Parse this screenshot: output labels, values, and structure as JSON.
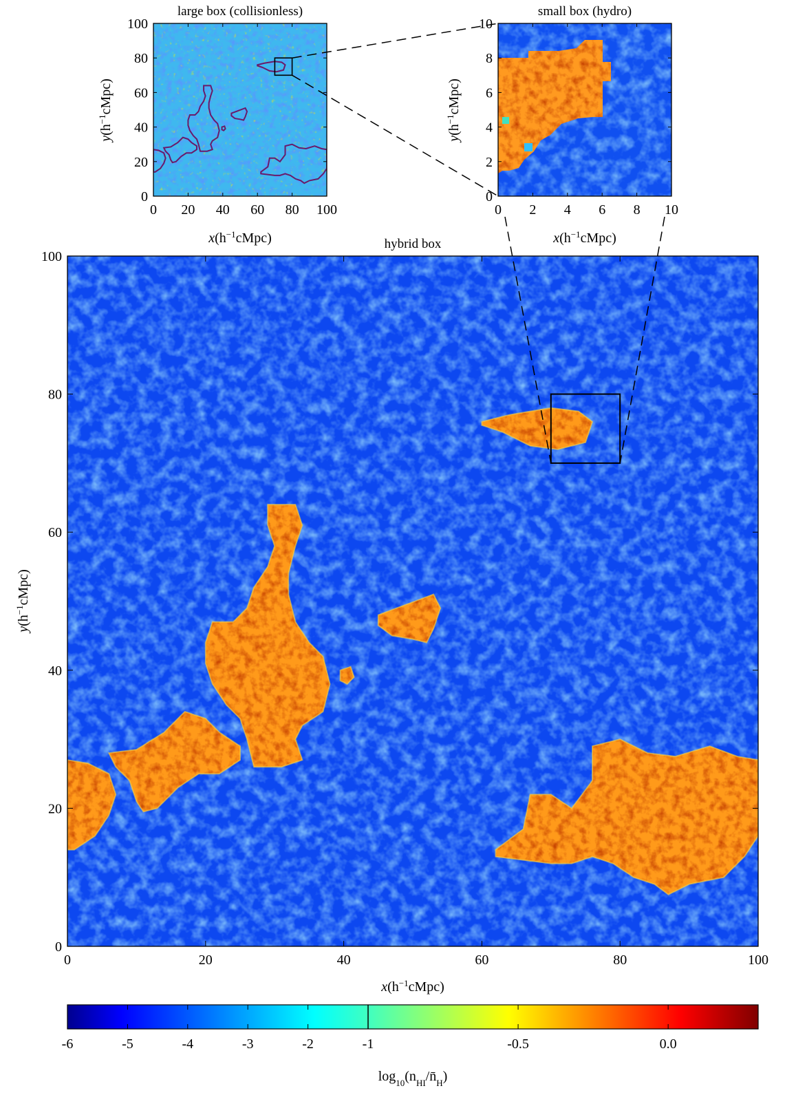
{
  "chart_data": [
    {
      "id": "large",
      "type": "heatmap",
      "title": "large box (collisionless)",
      "xlabel": "x",
      "xunit": "(h⁻¹cMpc)",
      "ylabel": "y",
      "yunit": "(h⁻¹cMpc)",
      "xlim": [
        0,
        100
      ],
      "ylim": [
        0,
        100
      ],
      "xticks": [
        0,
        20,
        40,
        60,
        80,
        100
      ],
      "yticks": [
        0,
        20,
        40,
        60,
        80,
        100
      ],
      "highlight_box": {
        "x": [
          70,
          80
        ],
        "y": [
          70,
          80
        ]
      }
    },
    {
      "id": "small",
      "type": "heatmap",
      "title": "small box (hydro)",
      "xlabel": "x",
      "xunit": "(h⁻¹cMpc)",
      "ylabel": "y",
      "yunit": "(h⁻¹cMpc)",
      "xlim": [
        0,
        10
      ],
      "ylim": [
        0,
        10
      ],
      "xticks": [
        0,
        2,
        4,
        6,
        8,
        10
      ],
      "yticks": [
        0,
        2,
        4,
        6,
        8,
        10
      ]
    },
    {
      "id": "hybrid",
      "type": "heatmap",
      "title": "hybrid box",
      "xlabel": "x",
      "xunit": "(h⁻¹cMpc)",
      "ylabel": "y",
      "yunit": "(h⁻¹cMpc)",
      "xlim": [
        0,
        100
      ],
      "ylim": [
        0,
        100
      ],
      "xticks": [
        0,
        20,
        40,
        60,
        80,
        100
      ],
      "yticks": [
        0,
        20,
        40,
        60,
        80,
        100
      ],
      "highlight_box": {
        "x": [
          70,
          80
        ],
        "y": [
          70,
          80
        ]
      },
      "neutral_regions": [
        {
          "name": "top-right island",
          "points": [
            [
              60,
              76
            ],
            [
              64,
              77
            ],
            [
              70,
              78
            ],
            [
              74,
              77.5
            ],
            [
              76,
              76
            ],
            [
              75,
              73
            ],
            [
              71,
              72
            ],
            [
              67,
              72.5
            ],
            [
              63,
              74.5
            ],
            [
              60,
              75.5
            ]
          ]
        },
        {
          "name": "central finger",
          "points": [
            [
              29,
              64
            ],
            [
              33,
              64
            ],
            [
              34,
              61
            ],
            [
              33,
              58
            ],
            [
              32,
              54
            ],
            [
              32,
              51
            ],
            [
              33,
              47
            ],
            [
              35,
              44
            ],
            [
              37,
              42
            ],
            [
              38,
              38
            ],
            [
              37,
              34
            ],
            [
              34,
              32
            ],
            [
              33,
              30
            ],
            [
              34,
              27
            ],
            [
              31,
              26
            ],
            [
              27,
              26
            ],
            [
              26,
              30
            ],
            [
              25,
              33
            ],
            [
              23,
              35
            ],
            [
              21,
              38
            ],
            [
              20,
              41
            ],
            [
              20,
              44
            ],
            [
              21,
              47
            ],
            [
              24,
              47
            ],
            [
              26,
              49
            ],
            [
              27,
              52
            ],
            [
              29,
              55
            ],
            [
              30,
              58
            ],
            [
              29,
              61
            ]
          ]
        },
        {
          "name": "middle island",
          "points": [
            [
              45,
              48
            ],
            [
              49,
              49.5
            ],
            [
              53,
              51
            ],
            [
              54,
              49
            ],
            [
              53,
              46
            ],
            [
              52,
              44
            ],
            [
              50,
              44.5
            ],
            [
              47,
              45
            ],
            [
              45,
              46.5
            ]
          ]
        },
        {
          "name": "small islet",
          "points": [
            [
              39.5,
              40
            ],
            [
              41,
              40.5
            ],
            [
              41.5,
              39
            ],
            [
              40.5,
              38
            ],
            [
              39.5,
              38.5
            ]
          ]
        },
        {
          "name": "left arm",
          "points": [
            [
              6,
              28
            ],
            [
              10,
              28.5
            ],
            [
              14,
              31
            ],
            [
              17,
              34
            ],
            [
              20,
              33
            ],
            [
              22,
              31
            ],
            [
              25,
              29
            ],
            [
              25,
              27
            ],
            [
              22,
              25
            ],
            [
              19,
              25
            ],
            [
              16,
              23
            ],
            [
              13,
              20
            ],
            [
              11,
              19.5
            ],
            [
              10,
              21
            ],
            [
              9,
              24
            ],
            [
              7,
              26
            ]
          ]
        },
        {
          "name": "left edge blob",
          "points": [
            [
              0,
              27
            ],
            [
              3,
              26.5
            ],
            [
              6,
              25
            ],
            [
              7,
              22
            ],
            [
              6,
              19
            ],
            [
              4,
              16
            ],
            [
              1,
              14
            ],
            [
              0,
              14
            ]
          ]
        },
        {
          "name": "bottom-right complex",
          "points": [
            [
              62,
              14
            ],
            [
              66,
              17
            ],
            [
              67,
              22
            ],
            [
              70,
              22
            ],
            [
              73,
              20
            ],
            [
              76,
              24
            ],
            [
              76,
              29
            ],
            [
              80,
              30
            ],
            [
              84,
              28
            ],
            [
              88,
              27.5
            ],
            [
              93,
              29
            ],
            [
              97,
              27.5
            ],
            [
              100,
              27
            ],
            [
              100,
              16
            ],
            [
              98,
              13
            ],
            [
              95,
              10
            ],
            [
              90,
              9
            ],
            [
              87,
              7.5
            ],
            [
              85,
              9
            ],
            [
              82,
              10
            ],
            [
              79,
              12
            ],
            [
              76,
              13
            ],
            [
              73,
              12
            ],
            [
              70,
              12
            ],
            [
              66,
              12.5
            ],
            [
              62,
              13
            ]
          ]
        }
      ]
    }
  ],
  "colorbar": {
    "label": "log₁₀(n_HI/n̄_H)",
    "label_main": "log",
    "label_sub": "10",
    "label_paren": "(n",
    "label_sub2": "HI",
    "label_mid": "/n̄",
    "label_sub3": "H",
    "label_close": ")",
    "ticks": [
      "-6",
      "-5",
      "-4",
      "-3",
      "-2",
      "-1",
      "-0.5",
      "0.0"
    ],
    "tick_values": [
      -6,
      -5,
      -4,
      -3,
      -2,
      -1,
      -0.5,
      0.0
    ],
    "range_low": [
      -6,
      -1
    ],
    "range_high": [
      -1,
      0.3
    ],
    "colors": [
      "#00008f",
      "#0000ff",
      "#0080ff",
      "#00ffff",
      "#80ff80",
      "#ffff00",
      "#ff8000",
      "#ff0000",
      "#800000"
    ]
  },
  "labels": {
    "large_title": "large box (collisionless)",
    "small_title": "small box (hydro)",
    "hybrid_title": "hybrid box",
    "axis_x": "x",
    "axis_y": "y",
    "axis_unit": "(h",
    "axis_unit_sup": "−1",
    "axis_unit_tail": "cMpc)"
  }
}
